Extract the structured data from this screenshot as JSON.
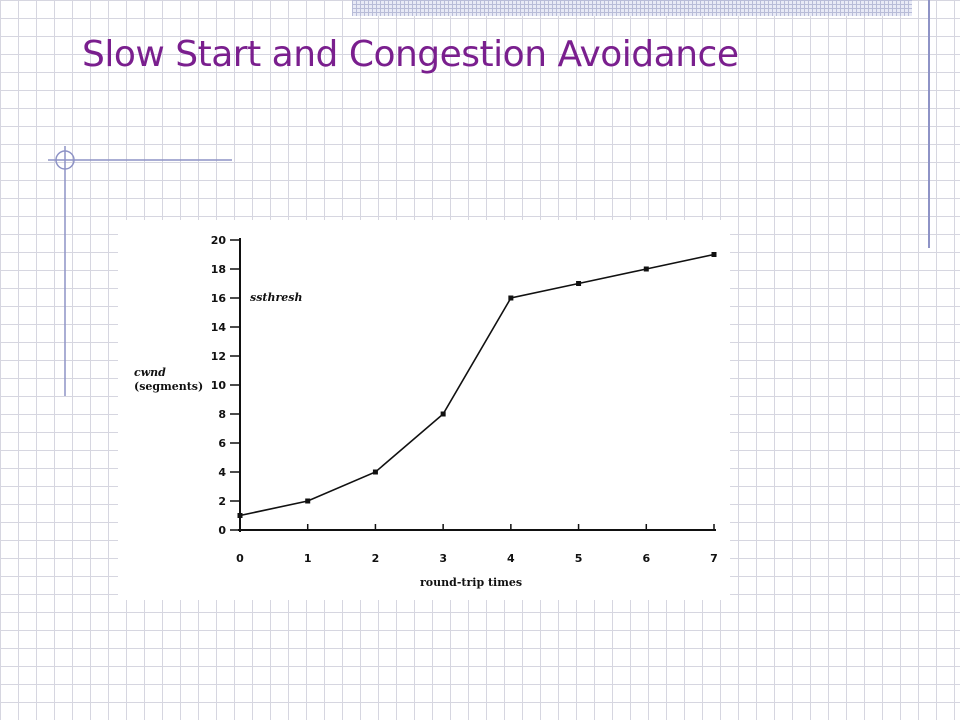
{
  "slide": {
    "title": "Slow Start and Congestion Avoidance"
  },
  "colors": {
    "title": "#7a1f8e",
    "accent_rule": "#8e93c6",
    "grid": "#d6d6e0"
  },
  "chart_data": {
    "type": "line",
    "xlabel": "round-trip times",
    "ylabel": "cwnd (segments)",
    "ylabel_parts": [
      "cwnd",
      "(segments)"
    ],
    "annotation": "ssthresh",
    "x_ticks": [
      "0",
      "1",
      "2",
      "3",
      "4",
      "5",
      "6",
      "7"
    ],
    "y_ticks": [
      "0",
      "2",
      "4",
      "6",
      "8",
      "10",
      "12",
      "14",
      "16",
      "18",
      "20"
    ],
    "xlim": [
      0,
      7
    ],
    "ylim": [
      0,
      20
    ],
    "grid": false,
    "legend": "none",
    "series": [
      {
        "x": [
          0,
          1,
          2,
          3,
          4,
          5,
          6,
          7
        ],
        "values": [
          1,
          2,
          4,
          8,
          16,
          17,
          18,
          19
        ]
      }
    ]
  }
}
